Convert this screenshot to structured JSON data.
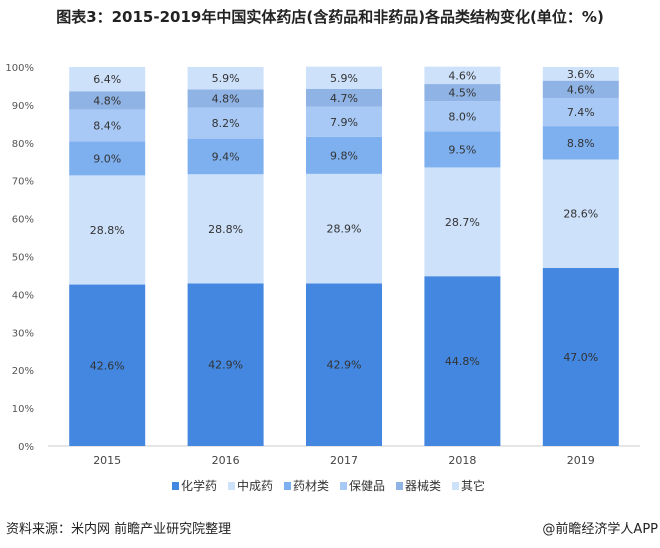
{
  "title": "图表3：2015-2019年中国实体药店(含药品和非药品)各品类结构变化(单位：%)",
  "source": "资料来源：米内网 前瞻产业研究院整理",
  "brand": "@前瞻经济学人APP",
  "chart_data": {
    "type": "bar",
    "stacked": true,
    "title": "图表3：2015-2019年中国实体药店(含药品和非药品)各品类结构变化(单位：%)",
    "categories": [
      "2015",
      "2016",
      "2017",
      "2018",
      "2019"
    ],
    "ylim": [
      0,
      100
    ],
    "yticks": [
      "0%",
      "10%",
      "20%",
      "30%",
      "40%",
      "50%",
      "60%",
      "70%",
      "80%",
      "90%",
      "100%"
    ],
    "legend_position": "bottom",
    "grid": false,
    "series": [
      {
        "name": "化学药",
        "color": "#4387e0",
        "values": [
          42.6,
          42.9,
          42.9,
          44.8,
          47.0
        ]
      },
      {
        "name": "中成药",
        "color": "#cde1fb",
        "values": [
          28.8,
          28.8,
          28.9,
          28.7,
          28.6
        ]
      },
      {
        "name": "药材类",
        "color": "#7eb0ef",
        "values": [
          9.0,
          9.4,
          9.8,
          9.5,
          8.8
        ]
      },
      {
        "name": "保健品",
        "color": "#a8c9f5",
        "values": [
          8.4,
          8.2,
          7.9,
          8.0,
          7.4
        ]
      },
      {
        "name": "器械类",
        "color": "#8fb3e4",
        "values": [
          4.8,
          4.8,
          4.7,
          4.5,
          4.6
        ]
      },
      {
        "name": "其它",
        "color": "#cde1fb",
        "values": [
          6.4,
          5.9,
          5.9,
          4.6,
          3.6
        ]
      }
    ]
  }
}
